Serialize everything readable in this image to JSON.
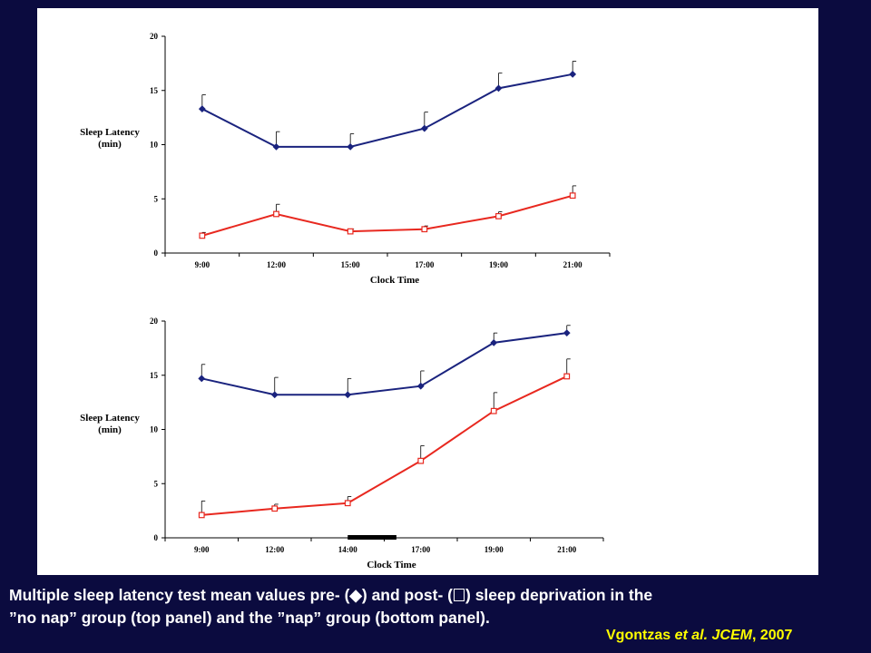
{
  "caption": {
    "line1_a": "Multiple sleep latency test mean values pre- (",
    "pre_marker": "◆",
    "line1_b": ") and post- (",
    "line1_c": ") sleep deprivation in the",
    "line2": "”no nap” group (top panel) and the ”nap” group (bottom panel)."
  },
  "citation": {
    "author": "Vgontzas",
    "etal": "et al. JCEM",
    "year": ", 2007"
  },
  "colors": {
    "background": "#0b0b3f",
    "pre_series": "#1a237e",
    "post_series": "#e8281f",
    "citation": "#ffff00"
  },
  "chart_data": [
    {
      "type": "line",
      "panel": "top",
      "title": "",
      "xlabel": "Clock Time",
      "ylabel_line1": "Sleep Latency",
      "ylabel_line2": "(min)",
      "categories": [
        "9:00",
        "12:00",
        "15:00",
        "17:00",
        "19:00",
        "21:00"
      ],
      "ylim": [
        0,
        20
      ],
      "yticks": [
        0,
        5,
        10,
        15,
        20
      ],
      "grid": false,
      "series": [
        {
          "key": "pre",
          "marker": "filled-diamond",
          "values": [
            13.3,
            9.8,
            9.8,
            11.5,
            15.2,
            16.5
          ],
          "err": [
            1.3,
            1.4,
            1.2,
            1.5,
            1.4,
            1.2
          ]
        },
        {
          "key": "post",
          "marker": "hollow-square",
          "values": [
            1.6,
            3.6,
            2.0,
            2.2,
            3.4,
            5.3
          ],
          "err": [
            0.3,
            0.9,
            0.2,
            0.3,
            0.4,
            0.9
          ]
        }
      ]
    },
    {
      "type": "line",
      "panel": "bottom",
      "title": "",
      "xlabel": "Clock Time",
      "ylabel_line1": "Sleep Latency",
      "ylabel_line2": "(min)",
      "categories": [
        "9:00",
        "12:00",
        "14:00",
        "17:00",
        "19:00",
        "21:00"
      ],
      "ylim": [
        0,
        20
      ],
      "yticks": [
        0,
        5,
        10,
        15,
        20
      ],
      "grid": false,
      "nap_bar": [
        "14:00",
        "16:00"
      ],
      "series": [
        {
          "key": "pre",
          "marker": "filled-diamond",
          "values": [
            14.7,
            13.2,
            13.2,
            14.0,
            18.0,
            18.9
          ],
          "err": [
            1.3,
            1.6,
            1.5,
            1.4,
            0.9,
            0.7
          ]
        },
        {
          "key": "post",
          "marker": "hollow-square",
          "values": [
            2.1,
            2.7,
            3.2,
            7.1,
            11.7,
            14.9
          ],
          "err": [
            1.3,
            0.4,
            0.6,
            1.4,
            1.7,
            1.6
          ]
        }
      ]
    }
  ]
}
